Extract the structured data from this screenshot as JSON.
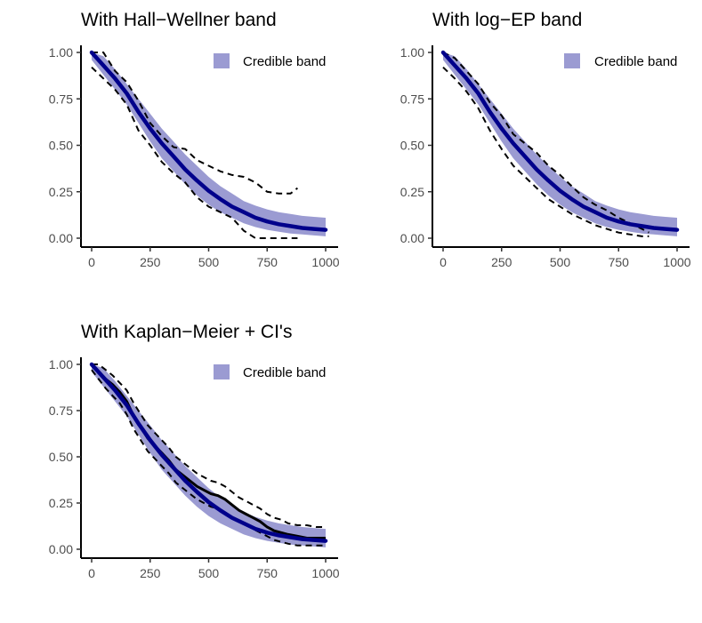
{
  "colors": {
    "band": "#9b9bd2",
    "median": "#00008b",
    "reference": "#000000"
  },
  "chart_data": [
    {
      "type": "area",
      "title": "With Hall−Wellner band",
      "xlim": [
        0,
        1000
      ],
      "ylim": [
        0,
        1
      ],
      "x_ticks": [
        "0",
        "250",
        "500",
        "750",
        "1000"
      ],
      "y_ticks": [
        "0.00",
        "0.25",
        "0.50",
        "0.75",
        "1.00"
      ],
      "legend": {
        "entries": [
          "Credible band"
        ],
        "position": "top-right"
      },
      "grid": false,
      "series": [
        {
          "name": "Credible band",
          "kind": "band",
          "x": [
            0,
            50,
            100,
            150,
            200,
            250,
            300,
            350,
            400,
            450,
            500,
            550,
            600,
            650,
            700,
            750,
            800,
            850,
            900,
            950,
            1000
          ],
          "lower": [
            0.96,
            0.88,
            0.8,
            0.72,
            0.62,
            0.52,
            0.43,
            0.36,
            0.29,
            0.23,
            0.18,
            0.14,
            0.11,
            0.08,
            0.06,
            0.045,
            0.035,
            0.025,
            0.02,
            0.015,
            0.01
          ],
          "upper": [
            1.0,
            0.98,
            0.91,
            0.83,
            0.75,
            0.67,
            0.59,
            0.52,
            0.45,
            0.39,
            0.33,
            0.28,
            0.24,
            0.2,
            0.175,
            0.155,
            0.14,
            0.13,
            0.12,
            0.115,
            0.11
          ]
        },
        {
          "kind": "median",
          "x": [
            0,
            50,
            100,
            150,
            200,
            250,
            300,
            350,
            400,
            450,
            500,
            550,
            600,
            650,
            700,
            750,
            800,
            850,
            900,
            950,
            1000
          ],
          "y": [
            1.0,
            0.93,
            0.86,
            0.78,
            0.68,
            0.59,
            0.51,
            0.44,
            0.37,
            0.31,
            0.255,
            0.21,
            0.17,
            0.14,
            0.11,
            0.09,
            0.075,
            0.065,
            0.055,
            0.05,
            0.045
          ]
        },
        {
          "kind": "reference",
          "x": [
            0,
            50,
            100,
            150,
            200,
            250,
            300,
            350,
            400,
            450,
            500,
            550,
            600,
            650,
            700,
            750,
            800,
            850,
            880
          ],
          "y": [
            1.0,
            1.0,
            0.9,
            0.84,
            0.74,
            0.62,
            0.55,
            0.49,
            0.48,
            0.42,
            0.39,
            0.36,
            0.34,
            0.33,
            0.3,
            0.25,
            0.24,
            0.24,
            0.27
          ]
        },
        {
          "kind": "reference",
          "x": [
            0,
            50,
            100,
            150,
            200,
            250,
            300,
            350,
            400,
            450,
            500,
            550,
            600,
            650,
            700,
            750,
            800,
            850,
            880
          ],
          "y": [
            0.92,
            0.86,
            0.8,
            0.72,
            0.58,
            0.5,
            0.41,
            0.35,
            0.3,
            0.22,
            0.17,
            0.14,
            0.11,
            0.04,
            0.0,
            0.0,
            0.0,
            0.0,
            0.0
          ]
        }
      ]
    },
    {
      "type": "area",
      "title": "With log−EP band",
      "xlim": [
        0,
        1000
      ],
      "ylim": [
        0,
        1
      ],
      "x_ticks": [
        "0",
        "250",
        "500",
        "750",
        "1000"
      ],
      "y_ticks": [
        "0.00",
        "0.25",
        "0.50",
        "0.75",
        "1.00"
      ],
      "legend": {
        "entries": [
          "Credible band"
        ],
        "position": "top-right"
      },
      "grid": false,
      "series": [
        {
          "name": "Credible band",
          "kind": "band",
          "x": [
            0,
            50,
            100,
            150,
            200,
            250,
            300,
            350,
            400,
            450,
            500,
            550,
            600,
            650,
            700,
            750,
            800,
            850,
            900,
            950,
            1000
          ],
          "lower": [
            0.96,
            0.88,
            0.8,
            0.72,
            0.62,
            0.52,
            0.43,
            0.36,
            0.29,
            0.23,
            0.18,
            0.14,
            0.11,
            0.08,
            0.06,
            0.045,
            0.035,
            0.025,
            0.02,
            0.015,
            0.01
          ],
          "upper": [
            1.0,
            0.98,
            0.91,
            0.83,
            0.75,
            0.67,
            0.59,
            0.52,
            0.45,
            0.39,
            0.33,
            0.28,
            0.24,
            0.2,
            0.175,
            0.155,
            0.14,
            0.13,
            0.12,
            0.115,
            0.11
          ]
        },
        {
          "kind": "median",
          "x": [
            0,
            50,
            100,
            150,
            200,
            250,
            300,
            350,
            400,
            450,
            500,
            550,
            600,
            650,
            700,
            750,
            800,
            850,
            900,
            950,
            1000
          ],
          "y": [
            1.0,
            0.93,
            0.86,
            0.78,
            0.68,
            0.59,
            0.51,
            0.44,
            0.37,
            0.31,
            0.255,
            0.21,
            0.17,
            0.14,
            0.11,
            0.09,
            0.075,
            0.065,
            0.055,
            0.05,
            0.045
          ]
        },
        {
          "kind": "reference",
          "x": [
            0,
            50,
            100,
            150,
            200,
            250,
            300,
            350,
            400,
            450,
            500,
            550,
            600,
            650,
            700,
            750,
            800,
            850,
            880
          ],
          "y": [
            1.0,
            0.97,
            0.9,
            0.83,
            0.73,
            0.66,
            0.56,
            0.51,
            0.46,
            0.39,
            0.34,
            0.28,
            0.22,
            0.18,
            0.15,
            0.11,
            0.08,
            0.05,
            0.03
          ]
        },
        {
          "kind": "reference",
          "x": [
            0,
            50,
            100,
            150,
            200,
            250,
            300,
            350,
            400,
            450,
            500,
            550,
            600,
            650,
            700,
            750,
            800,
            850,
            880
          ],
          "y": [
            0.92,
            0.86,
            0.79,
            0.7,
            0.58,
            0.48,
            0.39,
            0.33,
            0.27,
            0.21,
            0.17,
            0.13,
            0.1,
            0.07,
            0.05,
            0.03,
            0.02,
            0.01,
            0.01
          ]
        }
      ]
    },
    {
      "type": "area",
      "title": "With Kaplan−Meier + CI's",
      "xlim": [
        0,
        1000
      ],
      "ylim": [
        0,
        1
      ],
      "x_ticks": [
        "0",
        "250",
        "500",
        "750",
        "1000"
      ],
      "y_ticks": [
        "0.00",
        "0.25",
        "0.50",
        "0.75",
        "1.00"
      ],
      "legend": {
        "entries": [
          "Credible band"
        ],
        "position": "top-right"
      },
      "grid": false,
      "series": [
        {
          "name": "Credible band",
          "kind": "band",
          "x": [
            0,
            50,
            100,
            150,
            200,
            250,
            300,
            350,
            400,
            450,
            500,
            550,
            600,
            650,
            700,
            750,
            800,
            850,
            900,
            950,
            1000
          ],
          "lower": [
            0.96,
            0.88,
            0.8,
            0.72,
            0.62,
            0.52,
            0.43,
            0.36,
            0.29,
            0.23,
            0.18,
            0.14,
            0.11,
            0.08,
            0.06,
            0.045,
            0.035,
            0.025,
            0.02,
            0.015,
            0.01
          ],
          "upper": [
            1.0,
            0.98,
            0.91,
            0.83,
            0.75,
            0.67,
            0.59,
            0.52,
            0.45,
            0.39,
            0.33,
            0.28,
            0.24,
            0.2,
            0.175,
            0.155,
            0.14,
            0.13,
            0.12,
            0.115,
            0.11
          ]
        },
        {
          "kind": "median",
          "x": [
            0,
            50,
            100,
            150,
            200,
            250,
            300,
            350,
            400,
            450,
            500,
            550,
            600,
            650,
            700,
            750,
            800,
            850,
            900,
            950,
            1000
          ],
          "y": [
            1.0,
            0.93,
            0.86,
            0.78,
            0.68,
            0.59,
            0.51,
            0.44,
            0.37,
            0.31,
            0.255,
            0.21,
            0.17,
            0.14,
            0.11,
            0.09,
            0.075,
            0.065,
            0.055,
            0.05,
            0.045
          ]
        },
        {
          "kind": "km",
          "x": [
            0,
            30,
            60,
            90,
            120,
            150,
            180,
            210,
            240,
            270,
            300,
            330,
            360,
            390,
            420,
            450,
            480,
            510,
            540,
            570,
            600,
            630,
            660,
            690,
            720,
            750,
            780,
            810,
            840,
            880,
            920,
            960,
            1000
          ],
          "y": [
            1.0,
            0.96,
            0.92,
            0.89,
            0.85,
            0.8,
            0.72,
            0.66,
            0.6,
            0.56,
            0.52,
            0.48,
            0.43,
            0.4,
            0.37,
            0.34,
            0.32,
            0.3,
            0.29,
            0.27,
            0.24,
            0.21,
            0.19,
            0.17,
            0.15,
            0.12,
            0.1,
            0.09,
            0.08,
            0.07,
            0.06,
            0.06,
            0.06
          ]
        },
        {
          "kind": "reference",
          "x": [
            0,
            30,
            60,
            90,
            120,
            150,
            180,
            210,
            240,
            270,
            300,
            330,
            360,
            390,
            420,
            450,
            480,
            510,
            540,
            570,
            600,
            630,
            660,
            690,
            720,
            750,
            780,
            810,
            840,
            880,
            920,
            960,
            1000
          ],
          "y": [
            1.0,
            1.0,
            0.97,
            0.94,
            0.9,
            0.86,
            0.79,
            0.73,
            0.67,
            0.63,
            0.59,
            0.55,
            0.5,
            0.47,
            0.44,
            0.41,
            0.39,
            0.37,
            0.36,
            0.34,
            0.31,
            0.28,
            0.26,
            0.24,
            0.22,
            0.19,
            0.17,
            0.16,
            0.14,
            0.13,
            0.13,
            0.12,
            0.12
          ]
        },
        {
          "kind": "reference",
          "x": [
            0,
            30,
            60,
            90,
            120,
            150,
            180,
            210,
            240,
            270,
            300,
            330,
            360,
            390,
            420,
            450,
            480,
            510,
            540,
            570,
            600,
            630,
            660,
            690,
            720,
            750,
            780,
            810,
            840,
            880,
            920,
            960,
            1000
          ],
          "y": [
            0.97,
            0.92,
            0.87,
            0.83,
            0.79,
            0.73,
            0.65,
            0.59,
            0.53,
            0.49,
            0.45,
            0.41,
            0.36,
            0.33,
            0.3,
            0.27,
            0.25,
            0.23,
            0.22,
            0.2,
            0.17,
            0.15,
            0.13,
            0.11,
            0.09,
            0.07,
            0.05,
            0.04,
            0.03,
            0.02,
            0.02,
            0.02,
            0.02
          ]
        }
      ]
    }
  ]
}
